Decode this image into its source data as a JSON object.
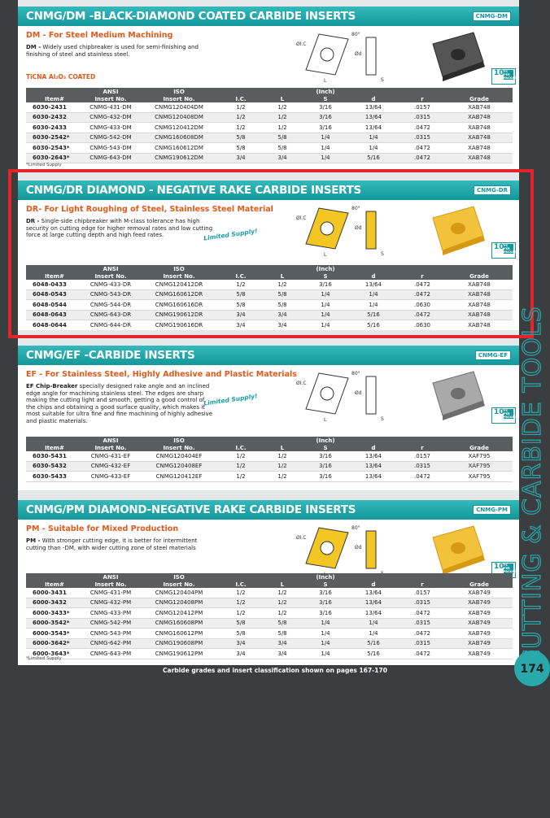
{
  "sections": [
    {
      "title": "CNMG/DM -BLACK-DIAMOND COATED CARBIDE INSERTS",
      "badge": "CNMG-DM",
      "subtitle": "DM - For Steel Medium Machining",
      "desc_code": "DM -",
      "desc": "Widely used chipbreaker is used for semi-finishing and finishing of steel and stainless steel.",
      "coating": "TiCNA Al₂O₃ COATED",
      "photo": "black",
      "diagram": [
        "ØI.C",
        "80°",
        "Ød",
        "S",
        "L"
      ],
      "pack": [
        "10",
        "PC PER PACKAGE"
      ],
      "header_top": [
        "ANSI",
        "ISO",
        "(Inch)"
      ],
      "columns": [
        "Item#",
        "Insert No.",
        "Insert No.",
        "I.C.",
        "L",
        "S",
        "d",
        "r",
        "Grade"
      ],
      "rows": [
        [
          "6030-2431",
          "CNMG-431-DM",
          "CNMG120404DM",
          "1/2",
          "1/2",
          "3/16",
          "13/64",
          ".0157",
          "XAB748"
        ],
        [
          "6030-2432",
          "CNMG-432-DM",
          "CNMG120408DM",
          "1/2",
          "1/2",
          "3/16",
          "13/64",
          ".0315",
          "XAB748"
        ],
        [
          "6030-2433",
          "CNMG-433-DM",
          "CNMG120412DM",
          "1/2",
          "1/2",
          "3/16",
          "13/64",
          ".0472",
          "XAB748"
        ],
        [
          "6030-2542*",
          "CNMG-542-DM",
          "CNMG160608DM",
          "5/8",
          "5/8",
          "1/4",
          "1/4",
          ".0315",
          "XAB748"
        ],
        [
          "6030-2543*",
          "CNMG-543-DM",
          "CNMG160612DM",
          "5/8",
          "5/8",
          "1/4",
          "1/4",
          ".0472",
          "XAB748"
        ],
        [
          "6030-2643*",
          "CNMG-643-DM",
          "CNMG190612DM",
          "3/4",
          "3/4",
          "1/4",
          "5/16",
          ".0472",
          "XAB748"
        ]
      ],
      "note": "*Limited Supply"
    },
    {
      "title": "CNMG/DR DIAMOND - NEGATIVE RAKE CARBIDE INSERTS",
      "badge": "CNMG-DR",
      "subtitle": "DR- For Light Roughing of Steel, Stainless Steel Material",
      "desc_code": "DR -",
      "desc": "Single-side chipbreaker with M-class tolerance has high security on cutting edge for higher removal rates and low cutting force at large cutting depth and high feed rates.",
      "limited": "Limited Supply!",
      "photo": "gold",
      "diagram": [
        "ØI.C",
        "80°",
        "Ød",
        "S",
        "L"
      ],
      "pack": [
        "10",
        "PC PER PACKAGE"
      ],
      "header_top": [
        "ANSI",
        "ISO",
        "(Inch)"
      ],
      "columns": [
        "Item#",
        "Insert No.",
        "Insert No.",
        "I.C.",
        "L",
        "S",
        "d",
        "r",
        "Grade"
      ],
      "rows": [
        [
          "6048-0433",
          "CNMG-433-DR",
          "CNMG120412DR",
          "1/2",
          "1/2",
          "3/16",
          "13/64",
          ".0472",
          "XAB748"
        ],
        [
          "6048-0543",
          "CNMG-543-DR",
          "CNMG160612DR",
          "5/8",
          "5/8",
          "1/4",
          "1/4",
          ".0472",
          "XAB748"
        ],
        [
          "6048-0544",
          "CNMG-544-DR",
          "CNMG160616DR",
          "5/8",
          "5/8",
          "1/4",
          "1/4",
          ".0630",
          "XAB748"
        ],
        [
          "6048-0643",
          "CNMG-643-DR",
          "CNMG190612DR",
          "3/4",
          "3/4",
          "1/4",
          "5/16",
          ".0472",
          "XAB748"
        ],
        [
          "6048-0644",
          "CNMG-644-DR",
          "CNMG190616DR",
          "3/4",
          "3/4",
          "1/4",
          "5/16",
          ".0630",
          "XAB748"
        ]
      ]
    },
    {
      "title": "CNMG/EF -CARBIDE INSERTS",
      "badge": "CNMG-EF",
      "subtitle": "EF - For Stainless Steel, Highly Adhesive and Plastic Materials",
      "desc_code": "EF Chip-Breaker",
      "desc": "specially designed rake angle and an inclined edge angle for machining stainless steel. The edges are sharp making the cutting light and smooth, getting a good control of the chips and obtaining a good surface quality, which makes it most suitable for ultra fine and fine machining of highly adhesive and plastic materials.",
      "limited": "Limited Supply!",
      "photo": "gray",
      "diagram": [
        "ØI.C",
        "80°",
        "Ød",
        "S",
        "L"
      ],
      "pack": [
        "10",
        "PC PER PACKAGE"
      ],
      "header_top": [
        "ANSI",
        "ISO",
        "(Inch)"
      ],
      "columns": [
        "Item#",
        "Insert No.",
        "Insert No.",
        "I.C.",
        "L",
        "S",
        "d",
        "r",
        "Grade"
      ],
      "rows": [
        [
          "6030-5431",
          "CNMG-431-EF",
          "CNMG120404EF",
          "1/2",
          "1/2",
          "3/16",
          "13/64",
          ".0157",
          "XAF795"
        ],
        [
          "6030-5432",
          "CNMG-432-EF",
          "CNMG120408EF",
          "1/2",
          "1/2",
          "3/16",
          "13/64",
          ".0315",
          "XAF795"
        ],
        [
          "6030-5433",
          "CNMG-433-EF",
          "CNMG120412EF",
          "1/2",
          "1/2",
          "3/16",
          "13/64",
          ".0472",
          "XAF795"
        ]
      ]
    },
    {
      "title": "CNMG/PM DIAMOND-NEGATIVE RAKE CARBIDE INSERTS",
      "badge": "CNMG-PM",
      "subtitle": "PM - Suitable for Mixed Production",
      "desc_code": "PM -",
      "desc": "With stronger cutting edge, it is better for intermittent cutting than -DM, with wider cutting zone of steel materials",
      "photo": "gold",
      "diagram": [
        "ØI.C",
        "80°",
        "Ød",
        "S",
        "L"
      ],
      "pack": [
        "10",
        "PC PER PACKAGE"
      ],
      "header_top": [
        "ANSI",
        "ISO",
        "(Inch)"
      ],
      "columns": [
        "Item#",
        "Insert No.",
        "Insert No.",
        "I.C.",
        "L",
        "S",
        "d",
        "r",
        "Grade"
      ],
      "rows": [
        [
          "6000-3431",
          "CNMG-431-PM",
          "CNMG120404PM",
          "1/2",
          "1/2",
          "3/16",
          "13/64",
          ".0157",
          "XAB749"
        ],
        [
          "6000-3432",
          "CNMG-432-PM",
          "CNMG120408PM",
          "1/2",
          "1/2",
          "3/16",
          "13/64",
          ".0315",
          "XAB749"
        ],
        [
          "6000-3433*",
          "CNMG-433-PM",
          "CNMG120412PM",
          "1/2",
          "1/2",
          "3/16",
          "13/64",
          ".0472",
          "XAB749"
        ],
        [
          "6000-3542*",
          "CNMG-542-PM",
          "CNMG160608PM",
          "5/8",
          "5/8",
          "1/4",
          "1/4",
          ".0315",
          "XAB749"
        ],
        [
          "6000-3543*",
          "CNMG-543-PM",
          "CNMG160612PM",
          "5/8",
          "5/8",
          "1/4",
          "1/4",
          ".0472",
          "XAB749"
        ],
        [
          "6000-3642*",
          "CNMG-642-PM",
          "CNMG190608PM",
          "3/4",
          "3/4",
          "1/4",
          "5/16",
          ".0315",
          "XAB749"
        ],
        [
          "6000-3643*",
          "CNMG-643-PM",
          "CNMG190612PM",
          "3/4",
          "3/4",
          "1/4",
          "5/16",
          ".0472",
          "XAB749"
        ]
      ],
      "note": "*Limited Supply"
    }
  ],
  "footer": "Carbide grades and insert classification shown on pages 167-170",
  "side_text": "CUTTING & CARBIDE TOOLS",
  "page_number": "174"
}
